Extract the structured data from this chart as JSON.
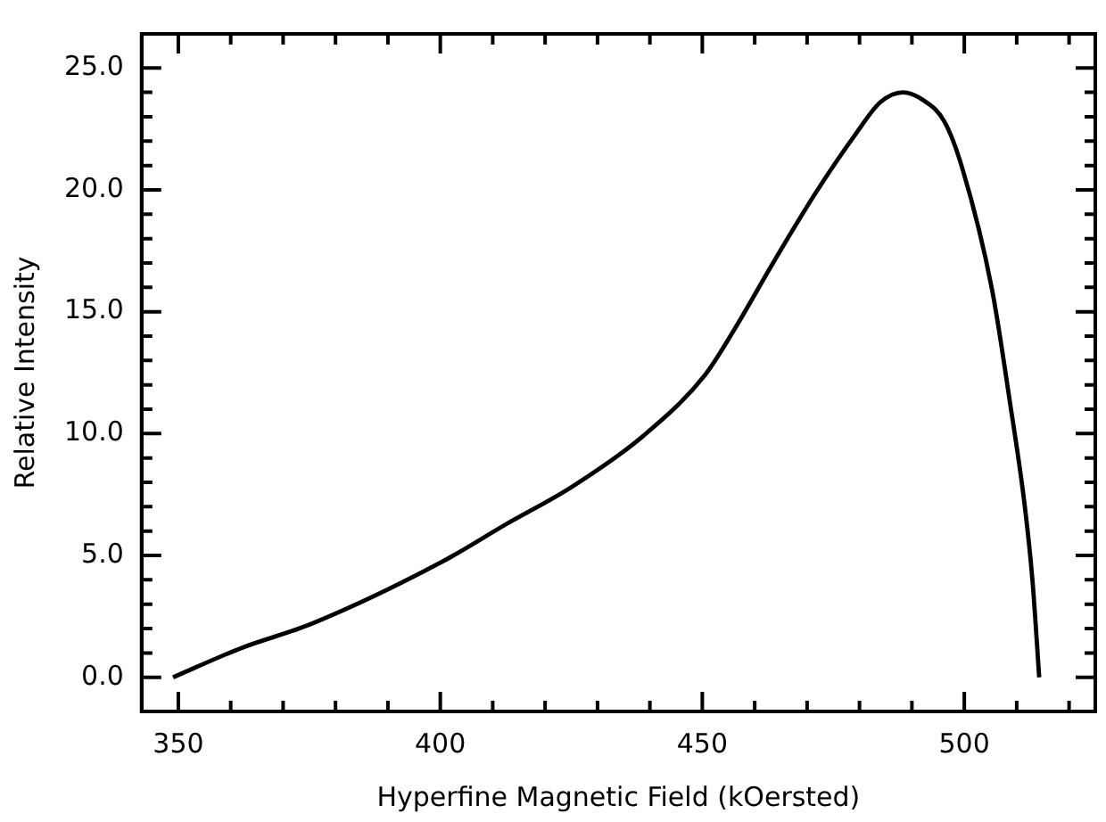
{
  "chart_data": {
    "type": "line",
    "xlabel": "Hyperfine Magnetic Field (kOersted)",
    "ylabel": "Relative Intensity",
    "xlim": [
      343,
      525
    ],
    "ylim": [
      -1.4,
      26.4
    ],
    "xticks": [
      350,
      {
        "value": 360,
        "label": null
      },
      {
        "value": 370,
        "label": null
      },
      {
        "value": 380,
        "label": null
      },
      {
        "value": 390,
        "label": null
      },
      400,
      {
        "value": 410,
        "label": null
      },
      {
        "value": 420,
        "label": null
      },
      {
        "value": 430,
        "label": null
      },
      {
        "value": 440,
        "label": null
      },
      450,
      {
        "value": 460,
        "label": null
      },
      {
        "value": 470,
        "label": null
      },
      {
        "value": 480,
        "label": null
      },
      {
        "value": 490,
        "label": null
      },
      500,
      {
        "value": 510,
        "label": null
      },
      {
        "value": 520,
        "label": null
      }
    ],
    "yticks": [
      {
        "value": 0,
        "label": "0.0"
      },
      {
        "value": 1,
        "label": null
      },
      {
        "value": 2,
        "label": null
      },
      {
        "value": 3,
        "label": null
      },
      {
        "value": 4,
        "label": null
      },
      {
        "value": 5,
        "label": "5.0"
      },
      {
        "value": 6,
        "label": null
      },
      {
        "value": 7,
        "label": null
      },
      {
        "value": 8,
        "label": null
      },
      {
        "value": 9,
        "label": null
      },
      {
        "value": 10,
        "label": "10.0"
      },
      {
        "value": 11,
        "label": null
      },
      {
        "value": 12,
        "label": null
      },
      {
        "value": 13,
        "label": null
      },
      {
        "value": 14,
        "label": null
      },
      {
        "value": 15,
        "label": "15.0"
      },
      {
        "value": 16,
        "label": null
      },
      {
        "value": 17,
        "label": null
      },
      {
        "value": 18,
        "label": null
      },
      {
        "value": 19,
        "label": null
      },
      {
        "value": 20,
        "label": "20.0"
      },
      {
        "value": 21,
        "label": null
      },
      {
        "value": 22,
        "label": null
      },
      {
        "value": 23,
        "label": null
      },
      {
        "value": 24,
        "label": null
      },
      {
        "value": 25,
        "label": "25.0"
      }
    ],
    "grid": false,
    "legend": false,
    "marker": "none",
    "line_style": "solid",
    "series": [
      {
        "color": "#000000",
        "x": [
          349,
          362,
          375.5,
          400,
          412.7,
          425,
          438.7,
          450.5,
          456.2,
          463.5,
          471.4,
          479.3,
          484,
          488.3,
          492,
          496.2,
          499.6,
          505.3,
          508.7,
          511.5,
          513,
          514.3
        ],
        "values": [
          0,
          1.2,
          2.2,
          4.7,
          6.3,
          7.8,
          9.9,
          12.4,
          14.3,
          17,
          19.8,
          22.3,
          23.6,
          24,
          23.7,
          22.8,
          20.9,
          15.9,
          11.3,
          7.1,
          4,
          0
        ]
      }
    ]
  }
}
